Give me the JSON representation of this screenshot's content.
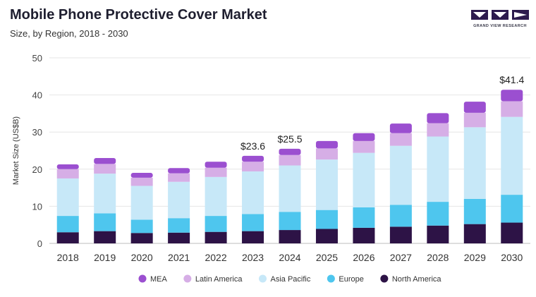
{
  "header": {
    "title": "Mobile Phone Protective Cover Market",
    "subtitle": "Size, by Region, 2018 - 2030"
  },
  "logo": {
    "text": "GRAND VIEW RESEARCH",
    "color": "#2d1b4e"
  },
  "chart_data": {
    "type": "bar",
    "stacked": true,
    "categories": [
      "2018",
      "2019",
      "2020",
      "2021",
      "2022",
      "2023",
      "2024",
      "2025",
      "2026",
      "2027",
      "2028",
      "2029",
      "2030"
    ],
    "ylabel": "Market Size (US$B)",
    "ylim": [
      0,
      50
    ],
    "yticks": [
      0,
      10,
      20,
      30,
      40,
      50
    ],
    "grid": true,
    "legend_position": "bottom",
    "series": [
      {
        "name": "North America",
        "color": "#2d1346",
        "values": [
          3.0,
          3.3,
          2.8,
          2.9,
          3.1,
          3.3,
          3.6,
          3.9,
          4.2,
          4.5,
          4.8,
          5.2,
          5.6
        ]
      },
      {
        "name": "Europe",
        "color": "#4ec6ee",
        "values": [
          4.4,
          4.8,
          3.6,
          3.9,
          4.3,
          4.6,
          4.9,
          5.1,
          5.5,
          5.9,
          6.4,
          6.8,
          7.5
        ]
      },
      {
        "name": "Asia Pacific",
        "color": "#c7e8f8",
        "values": [
          10.1,
          10.7,
          9.1,
          9.8,
          10.5,
          11.5,
          12.5,
          13.6,
          14.7,
          15.9,
          17.6,
          19.3,
          21.0
        ]
      },
      {
        "name": "Latin America",
        "color": "#d6aee6",
        "values": [
          2.5,
          2.6,
          2.2,
          2.3,
          2.5,
          2.6,
          2.8,
          3.0,
          3.2,
          3.4,
          3.6,
          3.9,
          4.2
        ]
      },
      {
        "name": "MEA",
        "color": "#9b4fd0",
        "values": [
          1.3,
          1.6,
          1.3,
          1.4,
          1.6,
          1.6,
          1.7,
          2.0,
          2.1,
          2.6,
          2.7,
          3.0,
          3.1
        ]
      }
    ],
    "legend_order": [
      "MEA",
      "Latin America",
      "Asia Pacific",
      "Europe",
      "North America"
    ],
    "annotations": [
      {
        "category": "2023",
        "text": "$23.6",
        "value": 23.6
      },
      {
        "category": "2024",
        "text": "$25.5",
        "value": 25.5
      },
      {
        "category": "2030",
        "text": "$41.4",
        "value": 41.4
      }
    ]
  }
}
